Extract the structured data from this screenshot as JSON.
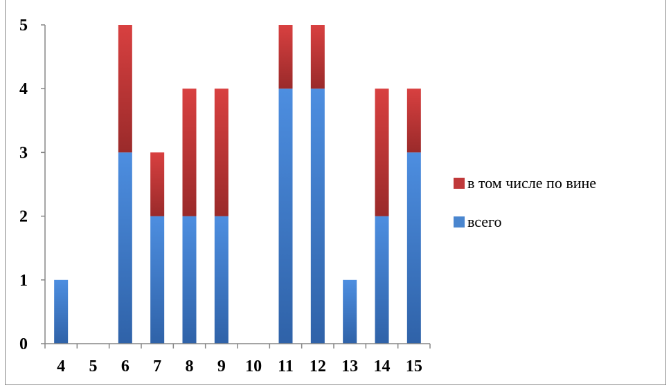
{
  "chart_data": {
    "type": "bar",
    "stacked": true,
    "title": "",
    "xlabel": "",
    "ylabel": "",
    "categories": [
      "4",
      "5",
      "6",
      "7",
      "8",
      "9",
      "10",
      "11",
      "12",
      "13",
      "14",
      "15"
    ],
    "ylim": [
      0,
      5
    ],
    "yticks": [
      "0",
      "1",
      "2",
      "3",
      "4",
      "5"
    ],
    "grid": false,
    "legend_position": "right",
    "series": [
      {
        "name": "всего",
        "color": "#4a86cf",
        "values": [
          1,
          0,
          3,
          2,
          2,
          2,
          0,
          4,
          4,
          1,
          2,
          3
        ]
      },
      {
        "name": "в том числе по вине",
        "color": "#c0393a",
        "values": [
          0,
          0,
          2,
          1,
          2,
          2,
          0,
          1,
          1,
          0,
          2,
          1
        ]
      }
    ],
    "legend_order": [
      "в том числе по вине",
      "всего"
    ]
  }
}
